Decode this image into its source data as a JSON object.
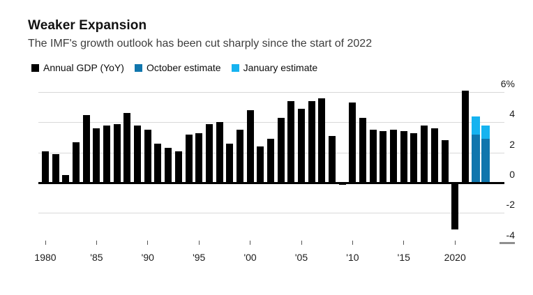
{
  "header": {
    "title": "Weaker Expansion",
    "subtitle": "The IMF's growth outlook has been cut sharply since the start of 2022"
  },
  "legend": [
    {
      "label": "Annual GDP (YoY)",
      "color": "#000000"
    },
    {
      "label": "October estimate",
      "color": "#1076ad"
    },
    {
      "label": "January estimate",
      "color": "#16b3f0"
    }
  ],
  "colors": {
    "annual_gdp": "#000000",
    "october_estimate": "#1076ad",
    "january_estimate": "#16b3f0",
    "gridline": "#d8d8d8",
    "zero_axis": "#000000",
    "text": "#1a1a1a",
    "subtitle_text": "#3d3d3d"
  },
  "chart_data": {
    "type": "bar",
    "title": "Weaker Expansion",
    "subtitle": "The IMF's growth outlook has been cut sharply since the start of 2022",
    "unit": "percent",
    "ylim": [
      -4.5,
      6.5
    ],
    "yticks": [
      6,
      4,
      2,
      0,
      -2,
      -4
    ],
    "ytick_labels": [
      "6%",
      "4",
      "2",
      "0",
      "-2",
      "-4"
    ],
    "gridlines_at": [
      6,
      4,
      2,
      -2
    ],
    "zero_line": true,
    "grid": "horizontal",
    "legend_position": "top",
    "xticks": [
      1980,
      1985,
      1990,
      1995,
      2000,
      2005,
      2010,
      2015,
      2020
    ],
    "xtick_labels": [
      "1980",
      "'85",
      "'90",
      "'95",
      "'00",
      "'05",
      "'10",
      "'15",
      "2020"
    ],
    "series": [
      {
        "name": "Annual GDP (YoY)",
        "color": "#000000",
        "x": [
          1980,
          1981,
          1982,
          1983,
          1984,
          1985,
          1986,
          1987,
          1988,
          1989,
          1990,
          1991,
          1992,
          1993,
          1994,
          1995,
          1996,
          1997,
          1998,
          1999,
          2000,
          2001,
          2002,
          2003,
          2004,
          2005,
          2006,
          2007,
          2008,
          2009,
          2010,
          2011,
          2012,
          2013,
          2014,
          2015,
          2016,
          2017,
          2018,
          2019,
          2020,
          2021
        ],
        "values": [
          2.1,
          1.9,
          0.5,
          2.7,
          4.5,
          3.6,
          3.8,
          3.9,
          4.6,
          3.8,
          3.5,
          2.6,
          2.3,
          2.1,
          3.2,
          3.3,
          3.9,
          4.0,
          2.6,
          3.5,
          4.8,
          2.4,
          2.9,
          4.3,
          5.4,
          4.9,
          5.4,
          5.6,
          3.1,
          -0.1,
          5.3,
          4.3,
          3.5,
          3.4,
          3.5,
          3.4,
          3.3,
          3.8,
          3.6,
          2.8,
          -3.1,
          6.1
        ]
      },
      {
        "name": "October estimate",
        "color": "#1076ad",
        "x": [
          2022,
          2023
        ],
        "values": [
          3.2,
          2.9
        ]
      },
      {
        "name": "January estimate",
        "color": "#16b3f0",
        "x": [
          2022,
          2023
        ],
        "values": [
          4.4,
          3.8
        ]
      }
    ]
  }
}
